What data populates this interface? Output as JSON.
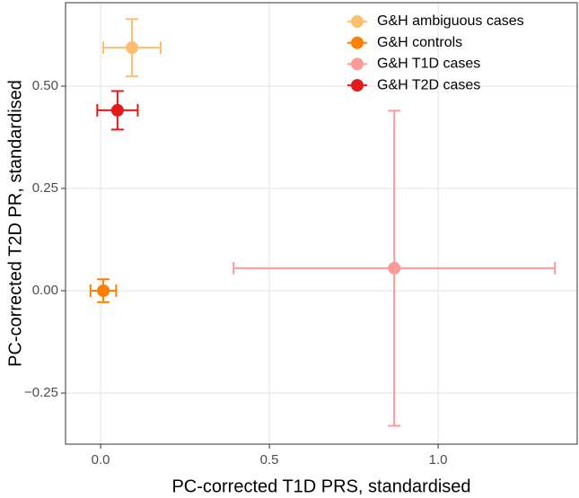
{
  "chart_data": {
    "type": "scatter",
    "xlabel": "PC-corrected T1D PRS, standardised",
    "ylabel": "PC-corrected T2D PR, standardised",
    "xlim": [
      -0.104,
      1.412
    ],
    "ylim": [
      -0.375,
      0.704
    ],
    "xticks": [
      {
        "value": 0,
        "label": "0.0"
      },
      {
        "value": 0.5,
        "label": "0.5"
      },
      {
        "value": 1,
        "label": "1.0"
      }
    ],
    "yticks": [
      {
        "value": -0.25,
        "label": "−0.25"
      },
      {
        "value": 0,
        "label": "0.00"
      },
      {
        "value": 0.25,
        "label": "0.25"
      },
      {
        "value": 0.5,
        "label": "0.50"
      }
    ],
    "grid": true,
    "legend": "top-right",
    "series": [
      {
        "name": "G&H ambiguous cases",
        "color": "#fdbf6f",
        "x": [
          0.093
        ],
        "values": [
          0.594
        ],
        "xerr": [
          0.085
        ],
        "yerr": [
          0.07
        ]
      },
      {
        "name": "G&H controls",
        "color": "#ff7f00",
        "x": [
          0.008
        ],
        "values": [
          0.0
        ],
        "xerr": [
          0.038
        ],
        "yerr": [
          0.028
        ]
      },
      {
        "name": "G&H T1D cases",
        "color": "#fb9a99",
        "x": [
          0.87
        ],
        "values": [
          0.055
        ],
        "xerr": [
          0.476
        ],
        "yerr": [
          0.385
        ]
      },
      {
        "name": "G&H T2D cases",
        "color": "#e31a1c",
        "x": [
          0.05
        ],
        "values": [
          0.441
        ],
        "xerr": [
          0.06
        ],
        "yerr": [
          0.047
        ]
      }
    ]
  }
}
